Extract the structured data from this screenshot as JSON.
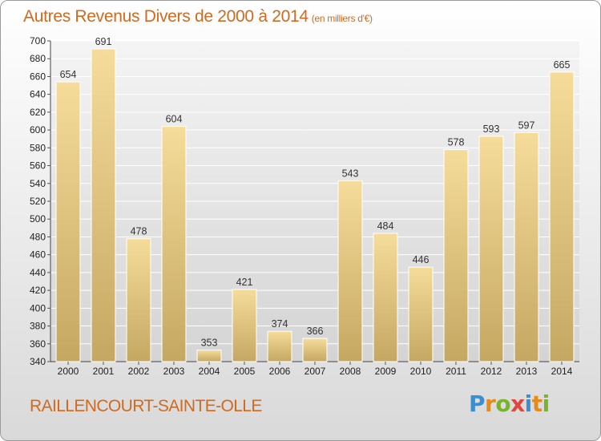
{
  "chart_data": {
    "type": "bar",
    "title": "Autres Revenus Divers de 2000 à 2014",
    "subtitle": "(en milliers d'€)",
    "categories": [
      "2000",
      "2001",
      "2002",
      "2003",
      "2004",
      "2005",
      "2006",
      "2007",
      "2008",
      "2009",
      "2010",
      "2011",
      "2012",
      "2013",
      "2014"
    ],
    "values": [
      654,
      691,
      478,
      604,
      353,
      421,
      374,
      366,
      543,
      484,
      446,
      578,
      593,
      597,
      665
    ],
    "ylim": [
      340,
      700
    ],
    "yticks": [
      340,
      360,
      380,
      400,
      420,
      440,
      460,
      480,
      500,
      520,
      540,
      560,
      580,
      600,
      620,
      640,
      660,
      680,
      700
    ],
    "grid": true,
    "bar_color": "#e8cc85",
    "title_color": "#d2691e"
  },
  "footer": {
    "place": "RAILLENCOURT-SAINTE-OLLE",
    "logo_letters": [
      "P",
      "r",
      "o",
      "x",
      "i",
      "t",
      "i"
    ],
    "logo_colors": [
      "#3a8fd0",
      "#e88a1a",
      "#78b32c",
      "#e0463a",
      "#3a8fd0",
      "#e88a1a",
      "#78b32c"
    ]
  }
}
